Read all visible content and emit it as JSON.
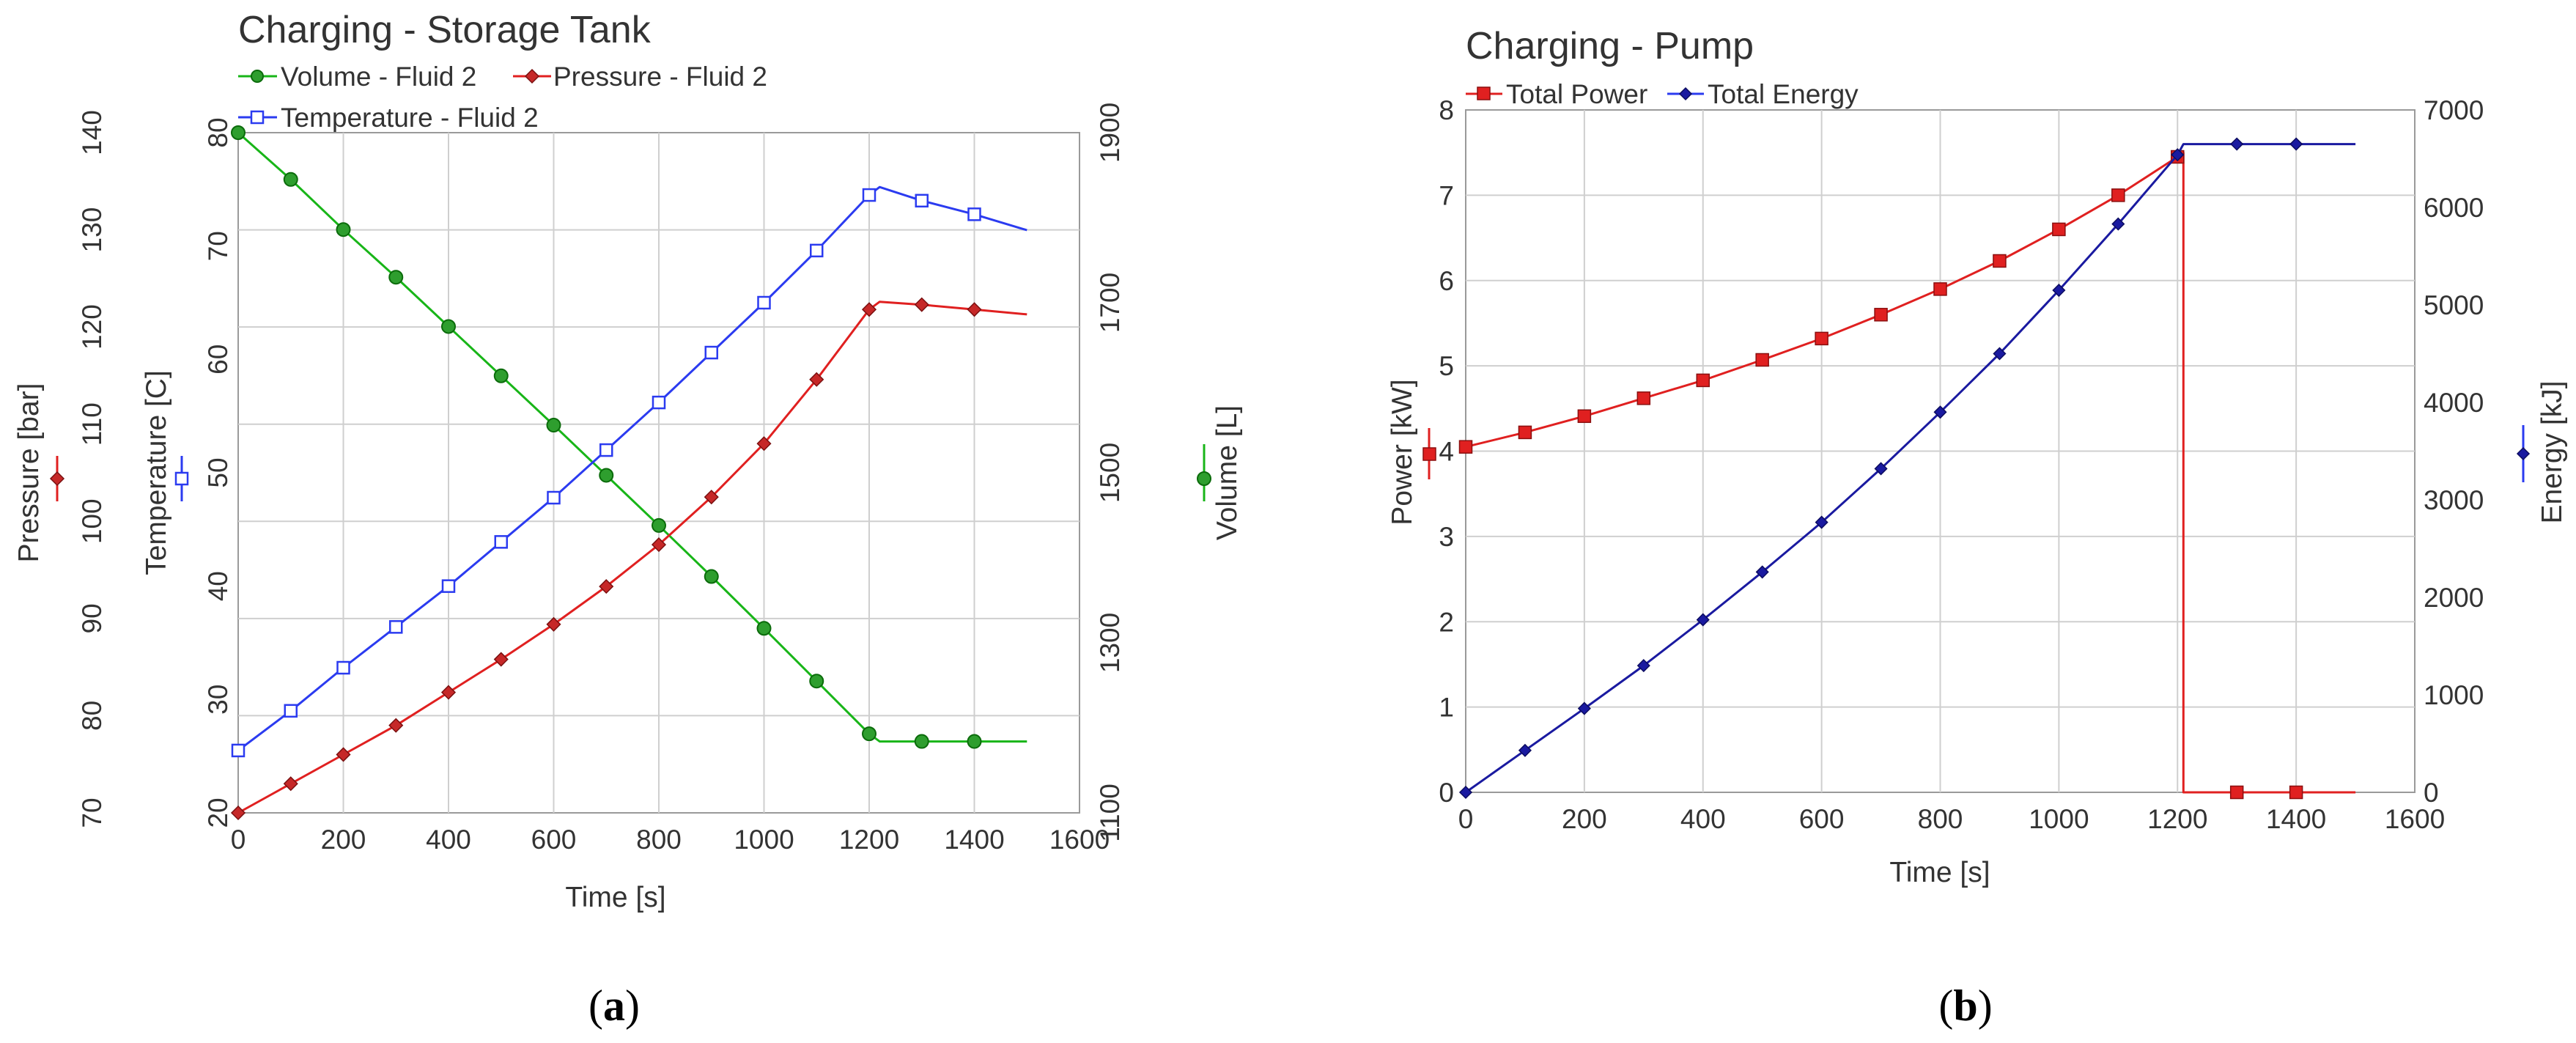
{
  "chart_data": [
    {
      "type": "line",
      "title": "Charging - Storage Tank",
      "caption_open": "(",
      "caption_letter": "a",
      "caption_close": ")",
      "xlabel": "Time [s]",
      "xlim": [
        0,
        1600
      ],
      "xticks": [
        "0",
        "200",
        "400",
        "600",
        "800",
        "1000",
        "1200",
        "1400",
        "1600"
      ],
      "grid": true,
      "axes": [
        {
          "id": "pressure",
          "label": "Pressure [bar]",
          "lim": [
            70,
            140
          ],
          "ticks": [
            "70",
            "80",
            "90",
            "100",
            "110",
            "120",
            "130",
            "140"
          ],
          "side": "left-outer",
          "color": "#c62828"
        },
        {
          "id": "temperature",
          "label": "Temperature [C]",
          "lim": [
            20,
            80
          ],
          "ticks": [
            "20",
            "30",
            "40",
            "50",
            "60",
            "70",
            "80"
          ],
          "side": "left-inner",
          "color": "#3b4bdc"
        },
        {
          "id": "volume",
          "label": "Volume [L]",
          "lim": [
            1100,
            1900
          ],
          "ticks": [
            "1100",
            "1300",
            "1500",
            "1700",
            "1900"
          ],
          "side": "right",
          "color": "#2e9e2e"
        }
      ],
      "legend": [
        "Volume - Fluid 2",
        "Pressure - Fluid 2",
        "Temperature - Fluid 2"
      ],
      "series": [
        {
          "name": "Volume - Fluid 2",
          "axis": "volume",
          "color": "#18b518",
          "marker": "circle",
          "x": [
            0,
            100,
            200,
            300,
            400,
            500,
            600,
            700,
            800,
            900,
            1000,
            1100,
            1200,
            1220,
            1300,
            1400,
            1500
          ],
          "y": [
            1900,
            1845,
            1786,
            1730,
            1672,
            1614,
            1556,
            1497,
            1438,
            1378,
            1317,
            1255,
            1193,
            1184,
            1184,
            1184,
            1184
          ],
          "markers_x": [
            0,
            100,
            200,
            300,
            400,
            500,
            600,
            700,
            800,
            900,
            1000,
            1100,
            1200,
            1300,
            1400
          ]
        },
        {
          "name": "Pressure - Fluid 2",
          "axis": "pressure",
          "color": "#e02020",
          "marker": "diamond",
          "x": [
            0,
            100,
            200,
            300,
            400,
            500,
            600,
            700,
            800,
            900,
            1000,
            1100,
            1200,
            1220,
            1300,
            1400,
            1500
          ],
          "y": [
            70.0,
            73.0,
            76.0,
            79.0,
            82.4,
            85.8,
            89.4,
            93.3,
            97.6,
            102.5,
            108.0,
            114.6,
            121.8,
            122.6,
            122.3,
            121.8,
            121.3
          ],
          "markers_x": [
            0,
            100,
            200,
            300,
            400,
            500,
            600,
            700,
            800,
            900,
            1000,
            1100,
            1200,
            1300,
            1400
          ]
        },
        {
          "name": "Temperature - Fluid 2",
          "axis": "temperature",
          "color": "#2b3bf0",
          "marker": "square",
          "x": [
            0,
            100,
            200,
            300,
            400,
            500,
            600,
            700,
            800,
            900,
            1000,
            1100,
            1200,
            1220,
            1300,
            1400,
            1500
          ],
          "y": [
            25.5,
            29.0,
            32.8,
            36.4,
            40.0,
            43.9,
            47.8,
            52.0,
            56.2,
            60.6,
            65.0,
            69.6,
            74.5,
            75.2,
            74.0,
            72.8,
            71.4
          ],
          "markers_x": [
            0,
            100,
            200,
            300,
            400,
            500,
            600,
            700,
            800,
            900,
            1000,
            1100,
            1200,
            1300,
            1400
          ]
        }
      ]
    },
    {
      "type": "line",
      "title": "Charging - Pump",
      "caption_open": "(",
      "caption_letter": "b",
      "caption_close": ")",
      "xlabel": "Time [s]",
      "xlim": [
        0,
        1600
      ],
      "xticks": [
        "0",
        "200",
        "400",
        "600",
        "800",
        "1000",
        "1200",
        "1400",
        "1600"
      ],
      "grid": true,
      "axes": [
        {
          "id": "power",
          "label": "Power [kW]",
          "lim": [
            0,
            8
          ],
          "ticks": [
            "0",
            "1",
            "2",
            "3",
            "4",
            "5",
            "6",
            "7",
            "8"
          ],
          "side": "left",
          "color": "#c62828"
        },
        {
          "id": "energy",
          "label": "Energy [kJ]",
          "lim": [
            0,
            7000
          ],
          "ticks": [
            "0",
            "1000",
            "2000",
            "3000",
            "4000",
            "5000",
            "6000",
            "7000"
          ],
          "side": "right",
          "color": "#2b3bbd"
        }
      ],
      "legend": [
        "Total Power",
        "Total Energy"
      ],
      "series": [
        {
          "name": "Total Power",
          "axis": "power",
          "color": "#e02020",
          "marker": "square",
          "x": [
            0,
            100,
            200,
            300,
            400,
            500,
            600,
            700,
            800,
            900,
            1000,
            1100,
            1200,
            1210,
            1210,
            1500
          ],
          "y": [
            4.05,
            4.22,
            4.41,
            4.62,
            4.83,
            5.07,
            5.32,
            5.6,
            5.9,
            6.23,
            6.6,
            7.0,
            7.45,
            7.5,
            0,
            0
          ],
          "markers_x": [
            0,
            100,
            200,
            300,
            400,
            500,
            600,
            700,
            800,
            900,
            1000,
            1100,
            1200,
            1300,
            1400
          ],
          "markers_y": [
            4.05,
            4.22,
            4.41,
            4.62,
            4.83,
            5.07,
            5.32,
            5.6,
            5.9,
            6.23,
            6.6,
            7.0,
            7.45,
            0,
            0
          ]
        },
        {
          "name": "Total Energy",
          "axis": "energy",
          "color": "#1a1aa0",
          "marker": "diamond",
          "x": [
            0,
            100,
            200,
            300,
            400,
            500,
            600,
            700,
            800,
            900,
            1000,
            1100,
            1200,
            1210,
            1300,
            1400,
            1500
          ],
          "y": [
            0,
            430,
            860,
            1300,
            1770,
            2260,
            2770,
            3320,
            3900,
            4500,
            5150,
            5830,
            6540,
            6650,
            6650,
            6650,
            6650
          ],
          "markers_x": [
            0,
            100,
            200,
            300,
            400,
            500,
            600,
            700,
            800,
            900,
            1000,
            1100,
            1200,
            1300,
            1400
          ],
          "markers_y": [
            0,
            430,
            860,
            1300,
            1770,
            2260,
            2770,
            3320,
            3900,
            4500,
            5150,
            5830,
            6540,
            6650,
            6650
          ]
        }
      ]
    }
  ]
}
